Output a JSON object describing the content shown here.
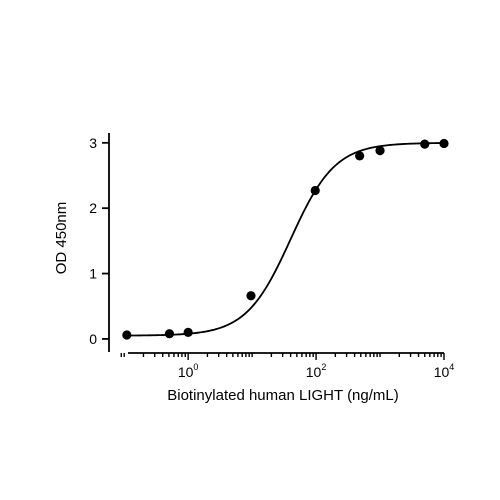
{
  "chart_data": {
    "type": "scatter",
    "title": "",
    "xlabel": "Biotinylated human LIGHT (ng/mL)",
    "ylabel": "OD 450nm",
    "x_scale": "log",
    "xlim": [
      0.06,
      10000
    ],
    "ylim": [
      -0.2,
      3.15
    ],
    "x_ticks": [
      {
        "value": 1,
        "base": "10",
        "exp": "0"
      },
      {
        "value": 100,
        "base": "10",
        "exp": "2"
      },
      {
        "value": 10000,
        "base": "10",
        "exp": "4"
      }
    ],
    "y_ticks": [
      0,
      1,
      2,
      3
    ],
    "grid": false,
    "legend": "none",
    "series": [
      {
        "points": [
          {
            "x": 0.11,
            "y": 0.06
          },
          {
            "x": 0.51,
            "y": 0.08
          },
          {
            "x": 1.0,
            "y": 0.1
          },
          {
            "x": 9.6,
            "y": 0.66
          },
          {
            "x": 97,
            "y": 2.27
          },
          {
            "x": 480,
            "y": 2.8
          },
          {
            "x": 1000,
            "y": 2.88
          },
          {
            "x": 5000,
            "y": 2.98
          },
          {
            "x": 10000,
            "y": 2.99
          }
        ],
        "fit": {
          "bottom": 0.05,
          "top": 3.0,
          "ec50": 40,
          "hill": 1.25
        },
        "color": "#000000"
      }
    ]
  }
}
